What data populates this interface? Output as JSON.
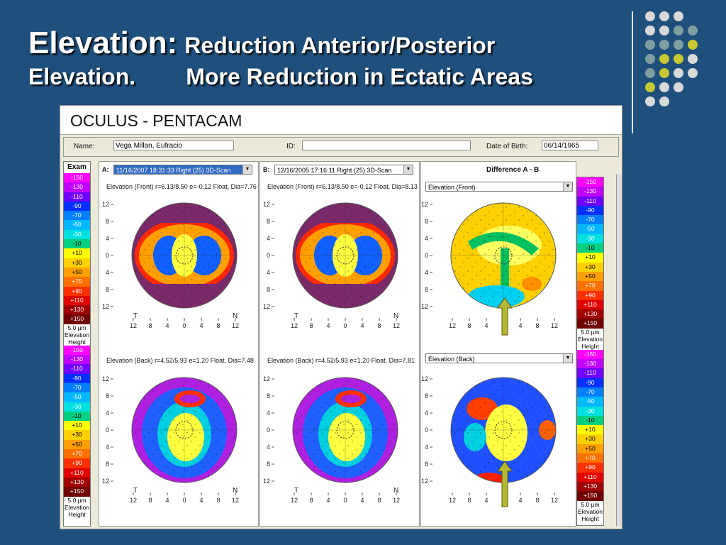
{
  "slide": {
    "title_main": "Elevation:",
    "title_rest": "Reduction Anterior/Posterior",
    "title_line2": "Elevation.        More Reduction in Ectatic Areas"
  },
  "window": {
    "app_title": "OCULUS  -  PENTACAM",
    "name_label": "Name:",
    "name_value": "Vega Millan, Eufracio",
    "id_label": "ID:",
    "id_value": "",
    "dob_label": "Date of Birth:",
    "dob_value": "06/14/1965"
  },
  "legend": {
    "header": "Exam",
    "values": [
      "-150",
      "-130",
      "-110",
      "-90",
      "-70",
      "-50",
      "-30",
      "-10",
      "+10",
      "+30",
      "+50",
      "+70",
      "+90",
      "+110",
      "+130",
      "+150"
    ],
    "colors": [
      "#ff00ff",
      "#c000ff",
      "#7000ff",
      "#0030ff",
      "#0080ff",
      "#00b8ff",
      "#00e0e0",
      "#00d080",
      "#ffff00",
      "#ffd000",
      "#ffa000",
      "#ff7000",
      "#ff3000",
      "#e00000",
      "#a00000",
      "#700000"
    ],
    "step": "5.0 µm",
    "unit1": "Elevation",
    "unit2": "Height"
  },
  "exams": {
    "a_label": "A:",
    "a_value": "11/16/2007  18:31:33  Right  (25) 3D-Scan",
    "b_label": "B:",
    "b_value": "12/16/2005  17:16:11  Right  (25) 3D-Scan",
    "diff_title": "Difference A - B",
    "a_front": "Elevation (Front)  r=6.13/8.50 e=-0.12 Float, Dia=7.76",
    "b_front": "Elevation (Front)  r=6.13/8.50 e=-0.12 Float, Dia=8.13",
    "a_back": "Elevation (Back)  r=4.52/5.93 e=1.20 Float, Dia=7.48",
    "b_back": "Elevation (Back)  r=4.52/5.93 e=1.20 Float, Dia=7.81",
    "diff_front_select": "Elevation (Front)",
    "diff_back_select": "Elevation (Back)"
  },
  "axes": {
    "y_ticks": [
      "12",
      "8",
      "4",
      "0",
      "4",
      "8",
      "12"
    ],
    "x_ticks": [
      "12",
      "8",
      "4",
      "0",
      "4",
      "8",
      "12"
    ],
    "t": "T",
    "n": "N"
  },
  "colors": {
    "slide_bg": "#1f4f7c",
    "arrow": "#b6b832",
    "dot_light": "#d9d9d9",
    "dot_teal": "#7fa0a0",
    "dot_yellow": "#c8c832"
  }
}
